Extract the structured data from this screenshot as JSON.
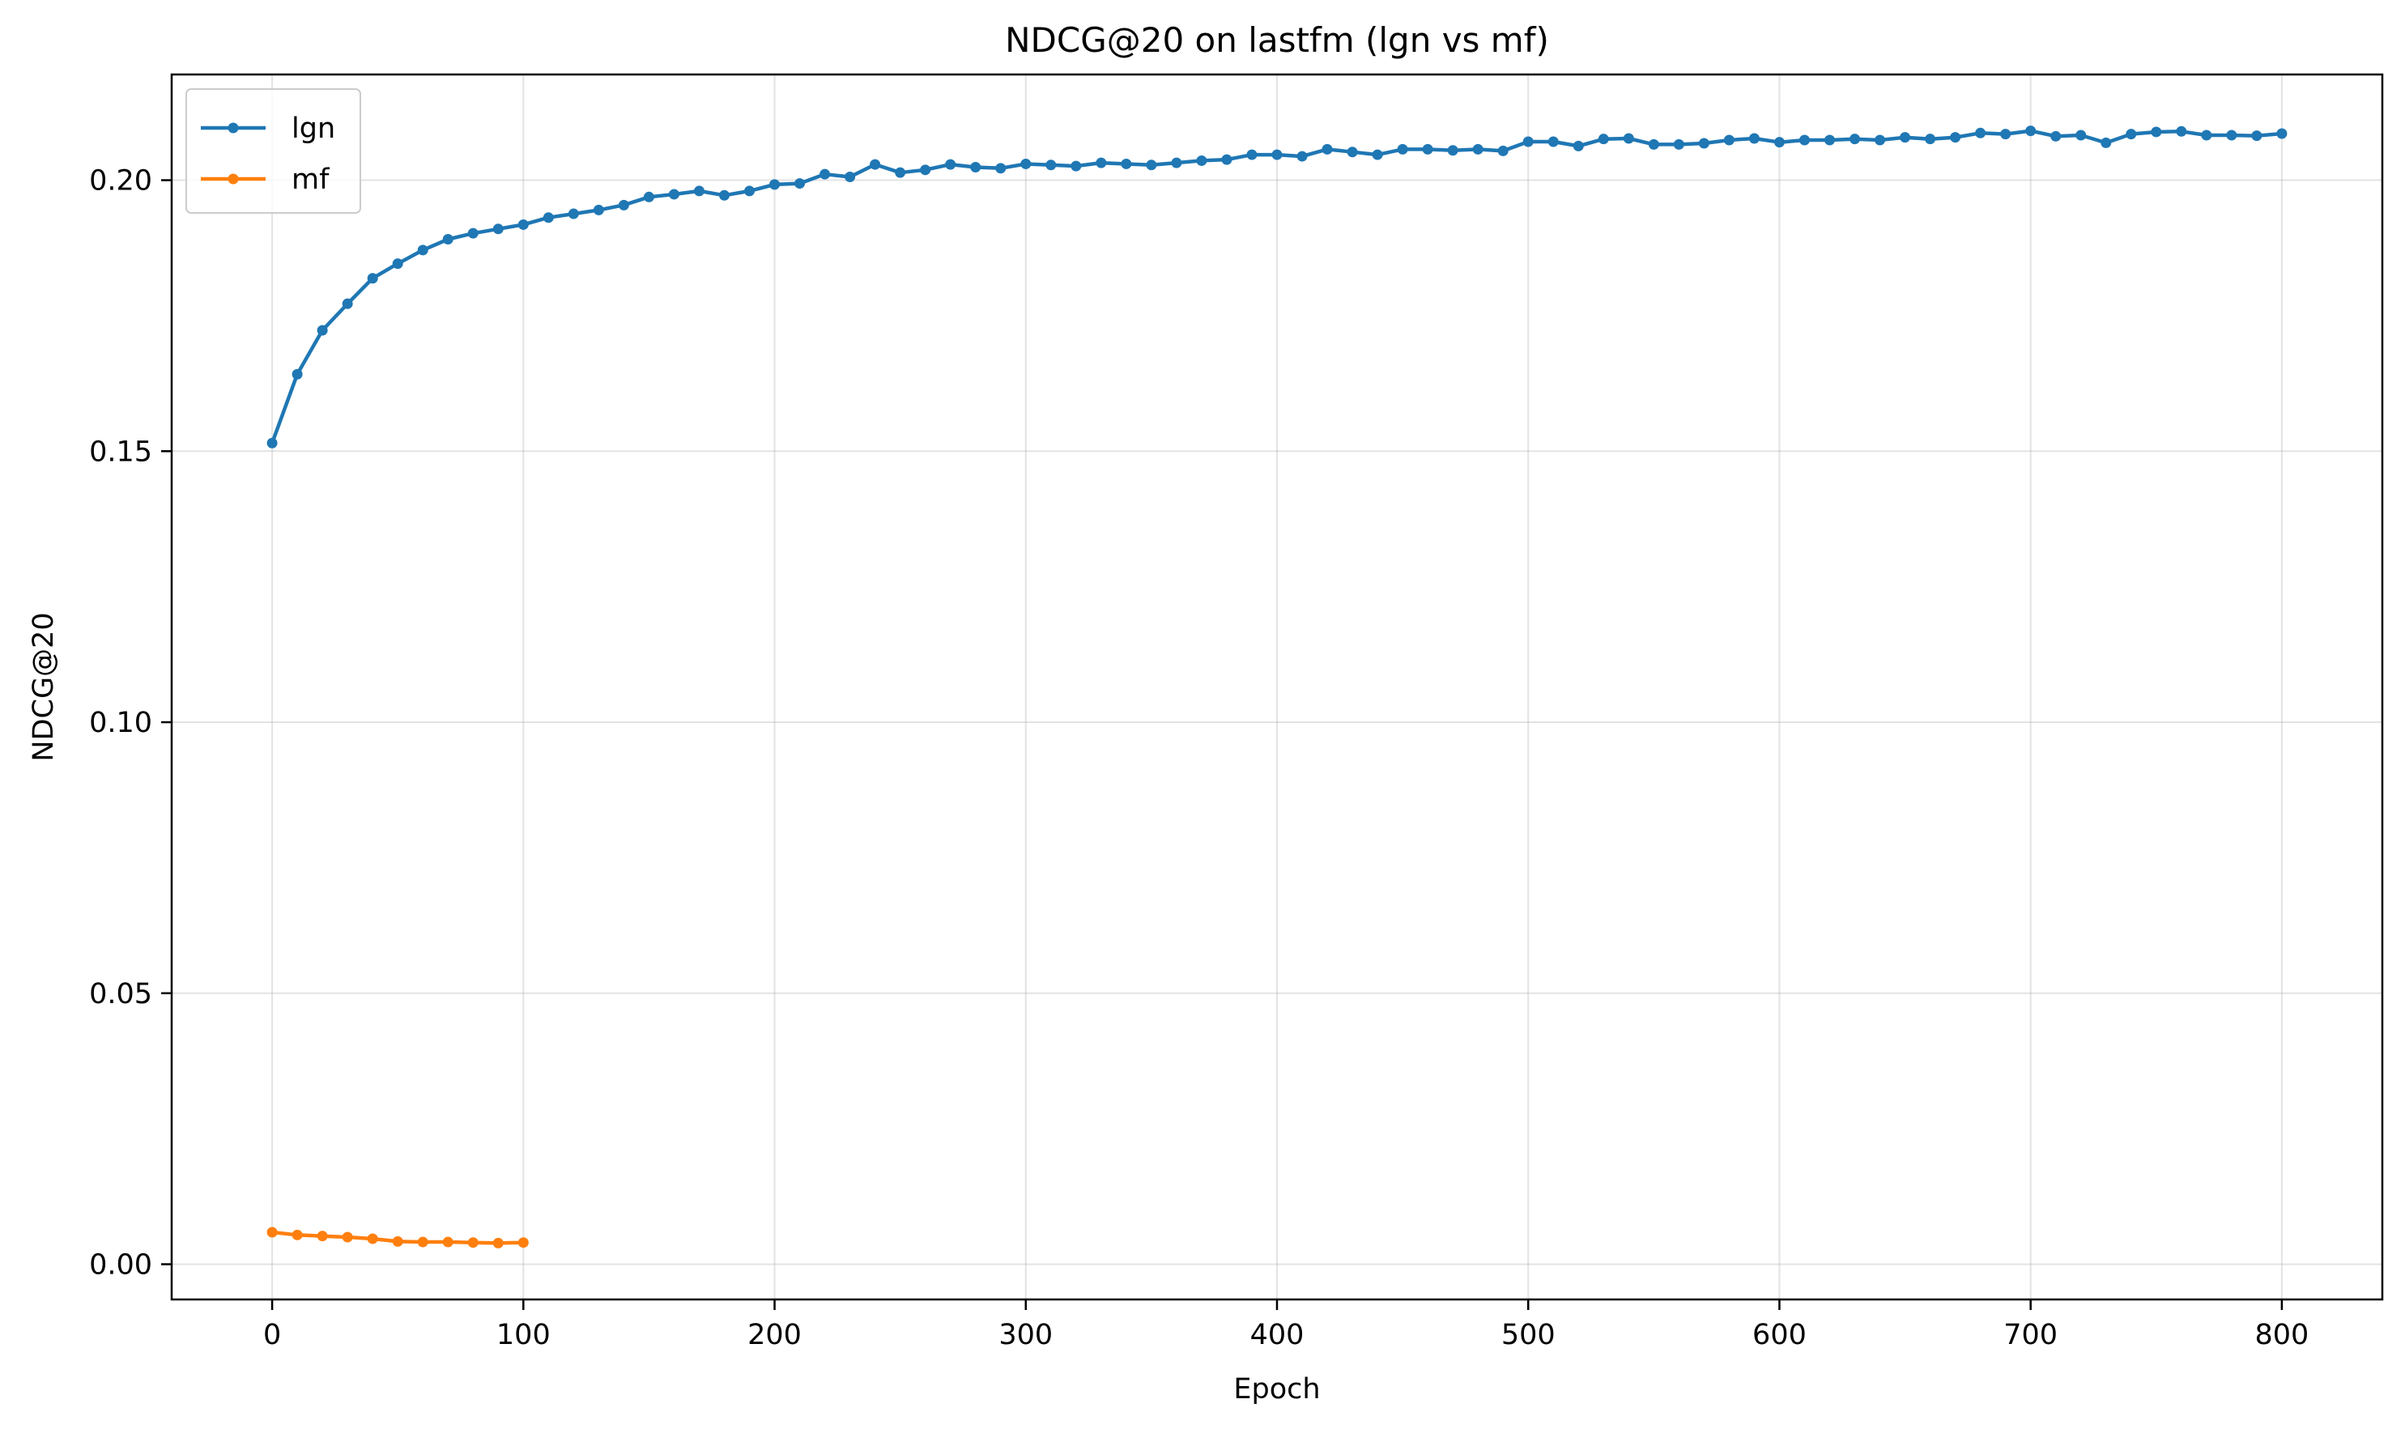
{
  "chart_data": {
    "type": "line",
    "title": "NDCG@20 on lastfm (lgn vs mf)",
    "xlabel": "Epoch",
    "ylabel": "NDCG@20",
    "xlim": [
      -40,
      840
    ],
    "ylim": [
      -0.0065,
      0.2195
    ],
    "xticks": [
      0,
      100,
      200,
      300,
      400,
      500,
      600,
      700,
      800
    ],
    "xtick_labels": [
      "0",
      "100",
      "200",
      "300",
      "400",
      "500",
      "600",
      "700",
      "800"
    ],
    "yticks": [
      0.0,
      0.05,
      0.1,
      0.15,
      0.2
    ],
    "ytick_labels": [
      "0.00",
      "0.05",
      "0.10",
      "0.15",
      "0.20"
    ],
    "grid": true,
    "legend_position": "top-left",
    "series": [
      {
        "name": "lgn",
        "color": "#1f77b4",
        "marker": "circle",
        "x": [
          0,
          10,
          20,
          30,
          40,
          50,
          60,
          70,
          80,
          90,
          100,
          110,
          120,
          130,
          140,
          150,
          160,
          170,
          180,
          190,
          200,
          210,
          220,
          230,
          240,
          250,
          260,
          270,
          280,
          290,
          300,
          310,
          320,
          330,
          340,
          350,
          360,
          370,
          380,
          390,
          400,
          410,
          420,
          430,
          440,
          450,
          460,
          470,
          480,
          490,
          500,
          510,
          520,
          530,
          540,
          550,
          560,
          570,
          580,
          590,
          600,
          610,
          620,
          630,
          640,
          650,
          660,
          670,
          680,
          690,
          700,
          710,
          720,
          730,
          740,
          750,
          760,
          770,
          780,
          790,
          800
        ],
        "values": [
          0.1515,
          0.1642,
          0.1723,
          0.1772,
          0.1819,
          0.1846,
          0.1871,
          0.1891,
          0.1902,
          0.191,
          0.1918,
          0.1931,
          0.1938,
          0.1945,
          0.1954,
          0.1969,
          0.1974,
          0.198,
          0.1972,
          0.198,
          0.1992,
          0.1994,
          0.2011,
          0.2006,
          0.2029,
          0.2014,
          0.2019,
          0.2029,
          0.2024,
          0.2022,
          0.203,
          0.2028,
          0.2026,
          0.2032,
          0.203,
          0.2028,
          0.2032,
          0.2036,
          0.2038,
          0.2047,
          0.2047,
          0.2044,
          0.2057,
          0.2052,
          0.2047,
          0.2057,
          0.2057,
          0.2055,
          0.2057,
          0.2054,
          0.2071,
          0.2071,
          0.2063,
          0.2076,
          0.2077,
          0.2066,
          0.2066,
          0.2068,
          0.2074,
          0.2077,
          0.207,
          0.2074,
          0.2074,
          0.2076,
          0.2074,
          0.2079,
          0.2076,
          0.2079,
          0.2087,
          0.2085,
          0.2091,
          0.2081,
          0.2083,
          0.2069,
          0.2085,
          0.2089,
          0.209,
          0.2083,
          0.2083,
          0.2082,
          0.2086
        ]
      },
      {
        "name": "mf",
        "color": "#ff7f0e",
        "marker": "circle",
        "x": [
          0,
          10,
          20,
          30,
          40,
          50,
          60,
          70,
          80,
          90,
          100
        ],
        "values": [
          0.0059,
          0.0054,
          0.0052,
          0.005,
          0.0047,
          0.0042,
          0.0041,
          0.0041,
          0.004,
          0.0039,
          0.004
        ]
      }
    ]
  }
}
